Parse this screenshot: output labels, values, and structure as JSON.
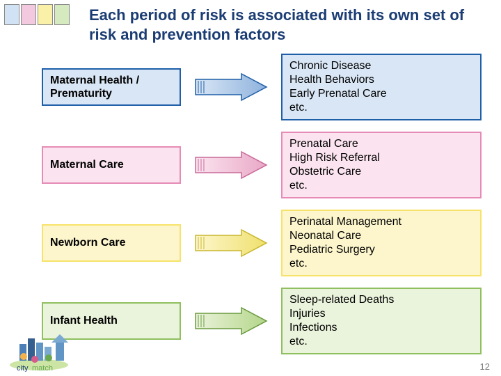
{
  "palette": {
    "blue": "#1f5fa8",
    "pink": "#e58bb6",
    "yellow": "#f7e36a",
    "green": "#8fbf5f",
    "blue_light": "#d9e6f5",
    "pink_light": "#fbe4ef",
    "yellow_light": "#fdf6cc",
    "green_light": "#eaf3db",
    "arrow_blue_border": "#1f5fa8",
    "arrow_pink_border": "#c96a9a",
    "arrow_yellow_border": "#c9b62e",
    "arrow_green_border": "#6a9a3f",
    "arrow_blue_fill_a": "#d9e6f5",
    "arrow_blue_fill_b": "#8fb3dd",
    "arrow_pink_fill_a": "#fbe4ef",
    "arrow_pink_fill_b": "#e9a8c7",
    "arrow_yellow_fill_a": "#fdf6cc",
    "arrow_yellow_fill_b": "#efe06e",
    "arrow_green_fill_a": "#eaf3db",
    "arrow_green_fill_b": "#b4d68a",
    "corner_blue": "#d0e2f4",
    "corner_pink": "#f2c9de",
    "corner_yellow": "#faf0a8",
    "corner_green": "#d6eac0",
    "title_color": "#1b3d73",
    "pagenum_color": "#7a7a7a"
  },
  "title": {
    "text": "Each period of risk is associated with its own set of risk and prevention factors",
    "fontsize": 22
  },
  "rows": [
    {
      "color_key": "blue",
      "left": "Maternal Health / Prematurity",
      "right": "Chronic Disease\nHealth Behaviors\nEarly Prenatal Care\netc."
    },
    {
      "color_key": "pink",
      "left": "Maternal  Care",
      "right": "Prenatal Care\nHigh Risk Referral\nObstetric Care\netc."
    },
    {
      "color_key": "yellow",
      "left": "Newborn  Care",
      "right": "Perinatal Management\nNeonatal Care\nPediatric Surgery\netc."
    },
    {
      "color_key": "green",
      "left": "Infant Health",
      "right": "Sleep-related Deaths\nInjuries\nInfections\netc."
    }
  ],
  "typography": {
    "box_fontsize": 16,
    "right_fontsize": 16
  },
  "page_number": "12",
  "logo_text": "citymatch"
}
